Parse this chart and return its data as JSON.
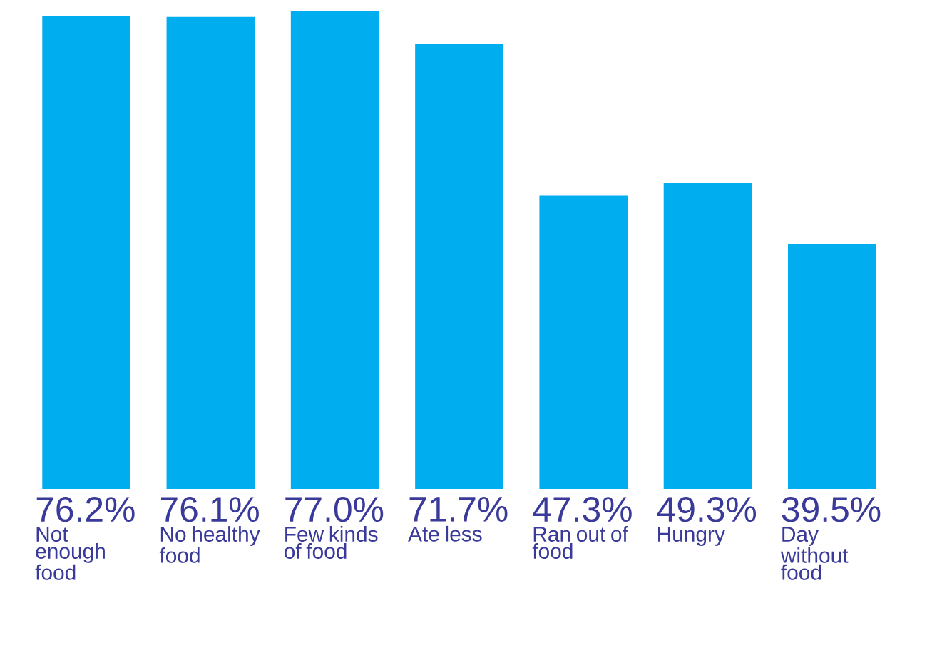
{
  "chart_data": {
    "type": "bar",
    "categories": [
      "Not enough food",
      "No healthy food",
      "Few kinds of food",
      "Ate less",
      "Ran out of food",
      "Hungry",
      "Day without food"
    ],
    "values": [
      76.2,
      76.1,
      77.0,
      71.7,
      47.3,
      49.3,
      39.5
    ],
    "value_labels": [
      "76.2%",
      "76.1%",
      "77.0%",
      "71.7%",
      "47.3%",
      "49.3%",
      "39.5%"
    ],
    "color": "#00aeef"
  }
}
